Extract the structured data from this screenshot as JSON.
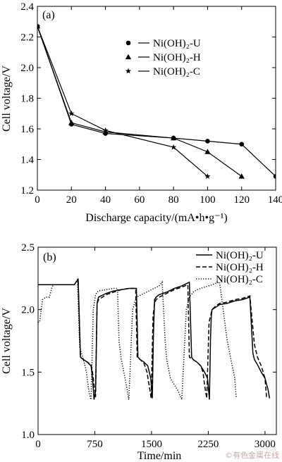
{
  "chart_data": [
    {
      "panel_label": "(a)",
      "type": "line",
      "xlabel": "Discharge capacity/(mA•h•g⁻¹)",
      "ylabel": "Cell voltage/V",
      "xlim": [
        0,
        140
      ],
      "ylim": [
        1.2,
        2.4
      ],
      "xticks": [
        0,
        20,
        40,
        60,
        80,
        100,
        120,
        140
      ],
      "yticks": [
        1.2,
        1.4,
        1.6,
        1.8,
        2.0,
        2.2,
        2.4
      ],
      "grid": false,
      "legend_position": "top-right",
      "series": [
        {
          "name": "Ni(OH)₂-U",
          "marker": "circle",
          "x": [
            0,
            20,
            40,
            80,
            100,
            120,
            140
          ],
          "y": [
            2.27,
            1.63,
            1.57,
            1.54,
            1.52,
            1.5,
            1.29
          ]
        },
        {
          "name": "Ni(OH)₂-H",
          "marker": "triangle",
          "x": [
            0,
            20,
            40,
            80,
            100,
            120
          ],
          "y": [
            2.27,
            1.64,
            1.58,
            1.54,
            1.45,
            1.29
          ]
        },
        {
          "name": "Ni(OH)₂-C",
          "marker": "star",
          "x": [
            0,
            20,
            40,
            80,
            100
          ],
          "y": [
            2.27,
            1.7,
            1.59,
            1.48,
            1.29
          ]
        }
      ]
    },
    {
      "panel_label": "(b)",
      "type": "line",
      "xlabel": "Time/min",
      "ylabel": "Cell voltage/V",
      "xlim": [
        0,
        3150
      ],
      "ylim": [
        1.0,
        2.5
      ],
      "xticks": [
        0,
        750,
        1500,
        2250,
        3000
      ],
      "yticks": [
        1.0,
        1.5,
        2.0,
        2.5
      ],
      "grid": false,
      "legend_position": "top-right",
      "series": [
        {
          "name": "Ni(OH)₂-U",
          "dash": "solid",
          "x": [
            0,
            20,
            480,
            500,
            530,
            560,
            600,
            650,
            700,
            720,
            740,
            760,
            780,
            790,
            800,
            830,
            900,
            1000,
            1100,
            1200,
            1300,
            1320,
            1350,
            1400,
            1450,
            1490,
            1510,
            1525,
            1540,
            1560,
            1600,
            1700,
            1800,
            1900,
            2000,
            2030,
            2050,
            2100,
            2150,
            2200,
            2240,
            2265,
            2280,
            2290,
            2300,
            2350,
            2400,
            2500,
            2600,
            2700,
            2800,
            2840,
            2860,
            2900,
            2950,
            3000,
            3040,
            3060
          ],
          "y": [
            2.2,
            2.2,
            2.2,
            2.22,
            2.24,
            1.62,
            1.6,
            1.58,
            1.55,
            1.45,
            1.28,
            1.35,
            2.05,
            2.08,
            2.1,
            2.11,
            2.13,
            2.15,
            2.16,
            2.17,
            2.17,
            1.62,
            1.6,
            1.58,
            1.55,
            1.45,
            1.29,
            1.8,
            2.08,
            2.1,
            2.12,
            2.14,
            2.17,
            2.19,
            2.22,
            1.62,
            1.6,
            1.58,
            1.55,
            1.5,
            1.45,
            1.28,
            1.78,
            1.95,
            2.0,
            2.02,
            2.04,
            2.05,
            2.07,
            2.08,
            2.1,
            1.65,
            1.6,
            1.56,
            1.5,
            1.45,
            1.36,
            1.29
          ]
        },
        {
          "name": "Ni(OH)₂-H",
          "dash": "dashed",
          "x": [
            0,
            480,
            500,
            530,
            560,
            600,
            650,
            700,
            720,
            760,
            780,
            800,
            900,
            1000,
            1100,
            1200,
            1290,
            1310,
            1350,
            1400,
            1440,
            1480,
            1495,
            1520,
            1540,
            1560,
            1600,
            1700,
            1800,
            1900,
            1980,
            2000,
            2050,
            2100,
            2150,
            2180,
            2200,
            2230,
            2260,
            2280,
            2300,
            2350,
            2400,
            2500,
            2600,
            2700,
            2800,
            2860,
            2900,
            2950,
            3000,
            3020
          ],
          "y": [
            2.2,
            2.2,
            2.22,
            2.24,
            1.62,
            1.6,
            1.58,
            1.56,
            1.5,
            1.3,
            2.05,
            2.08,
            2.12,
            2.14,
            2.16,
            2.17,
            2.17,
            1.62,
            1.6,
            1.57,
            1.5,
            1.35,
            1.29,
            1.95,
            2.05,
            2.08,
            2.1,
            2.13,
            2.16,
            2.18,
            2.2,
            1.62,
            1.6,
            1.58,
            1.55,
            1.5,
            1.4,
            1.29,
            1.9,
            1.95,
            2.0,
            2.03,
            2.05,
            2.06,
            2.08,
            2.09,
            2.11,
            1.72,
            1.62,
            1.55,
            1.45,
            1.3
          ]
        },
        {
          "name": "Ni(OH)₂-C",
          "dash": "dotted",
          "x": [
            0,
            20,
            60,
            100,
            150,
            180,
            200,
            230,
            480,
            500,
            520,
            550,
            600,
            640,
            660,
            680,
            700,
            730,
            760,
            780,
            800,
            900,
            1000,
            1050,
            1070,
            1100,
            1150,
            1180,
            1200,
            1250,
            1300,
            1400,
            1500,
            1600,
            1640,
            1680,
            1700,
            1750,
            1850,
            1900,
            1960,
            2000,
            2050,
            2100,
            2200,
            2300,
            2400,
            2500,
            2550,
            2600,
            2620
          ],
          "y": [
            1.9,
            1.9,
            2.08,
            2.1,
            2.1,
            2.17,
            2.2,
            2.2,
            2.2,
            2.22,
            2.24,
            1.7,
            1.6,
            1.5,
            1.4,
            1.32,
            1.28,
            2.0,
            2.12,
            2.14,
            2.15,
            2.16,
            2.17,
            2.17,
            1.75,
            1.6,
            1.45,
            1.35,
            1.28,
            2.0,
            2.1,
            2.13,
            2.16,
            2.19,
            2.22,
            1.75,
            1.6,
            1.45,
            1.35,
            1.28,
            2.0,
            2.1,
            2.14,
            2.16,
            2.18,
            2.2,
            2.22,
            1.75,
            1.6,
            1.45,
            1.29
          ]
        }
      ]
    }
  ],
  "watermark": "©有色金属在线"
}
